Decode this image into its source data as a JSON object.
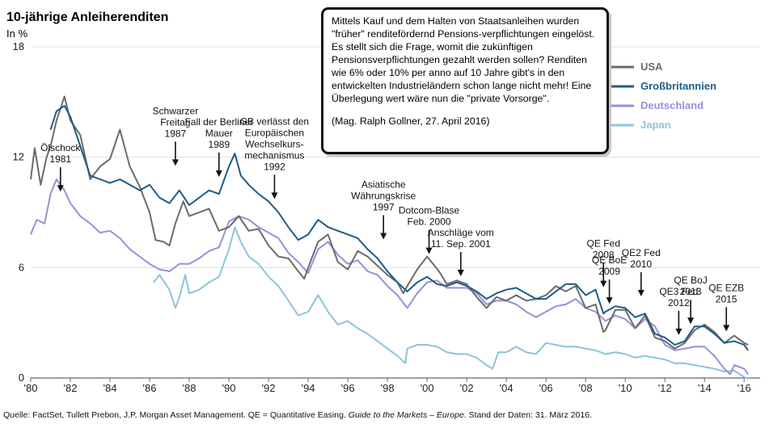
{
  "chart_data": {
    "type": "line",
    "title": "10-jährige Anleiherenditen",
    "ylabel": "In %",
    "ylim": [
      0,
      18
    ],
    "xlim": [
      1980,
      2016.4
    ],
    "y_ticks": [
      "0",
      "6",
      "12",
      "18"
    ],
    "x_ticks": [
      "'80",
      "'82",
      "'84",
      "'86",
      "'88",
      "'90",
      "'92",
      "'94",
      "'96",
      "'98",
      "'00",
      "'02",
      "'04",
      "'06",
      "'08",
      "'10",
      "'12",
      "'14",
      "'16"
    ],
    "x_tick_years": [
      1980,
      1982,
      1984,
      1986,
      1988,
      1990,
      1992,
      1994,
      1996,
      1998,
      2000,
      2002,
      2004,
      2006,
      2008,
      2010,
      2012,
      2014,
      2016
    ],
    "grid": "horizontal",
    "legend_position": "top-right",
    "series": [
      {
        "name": "USA",
        "color": "#6b6b6b",
        "x": [
          1980,
          1980.2,
          1980.5,
          1980.8,
          1981,
          1981.3,
          1981.7,
          1982,
          1982.5,
          1983,
          1983.5,
          1984,
          1984.5,
          1985,
          1985.5,
          1986,
          1986.3,
          1986.7,
          1987,
          1987.3,
          1987.7,
          1988,
          1988.5,
          1989,
          1989.5,
          1990,
          1990.5,
          1991,
          1991.5,
          1992,
          1992.5,
          1993,
          1993.5,
          1993.8,
          1994,
          1994.5,
          1995,
          1995.5,
          1996,
          1996.5,
          1997,
          1997.5,
          1998,
          1998.5,
          1998.8,
          1999,
          1999.5,
          2000,
          2000.3,
          2000.6,
          2001,
          2001.5,
          2002,
          2002.5,
          2003,
          2003.5,
          2004,
          2004.5,
          2005,
          2005.5,
          2006,
          2006.5,
          2007,
          2007.5,
          2008,
          2008.5,
          2008.9,
          2009,
          2009.5,
          2010,
          2010.5,
          2011,
          2011.5,
          2012,
          2012.5,
          2013,
          2013.5,
          2014,
          2014.5,
          2015,
          2015.5,
          2016,
          2016.2
        ],
        "y": [
          10.8,
          12.5,
          10.5,
          12.0,
          12.6,
          14.0,
          15.3,
          14.0,
          13.2,
          10.8,
          11.5,
          11.9,
          13.5,
          11.5,
          10.4,
          9.0,
          7.5,
          7.4,
          7.2,
          8.4,
          9.6,
          8.8,
          9.0,
          9.2,
          8.0,
          8.2,
          8.8,
          8.0,
          8.1,
          7.2,
          6.6,
          6.5,
          5.8,
          5.4,
          6.0,
          7.4,
          7.8,
          6.3,
          5.9,
          6.9,
          6.6,
          6.1,
          5.6,
          5.2,
          4.6,
          5.0,
          5.9,
          6.6,
          6.2,
          5.8,
          5.1,
          5.3,
          5.1,
          4.4,
          3.8,
          4.4,
          4.2,
          4.5,
          4.2,
          4.3,
          4.5,
          5.0,
          4.7,
          5.0,
          3.8,
          4.0,
          2.5,
          2.6,
          3.7,
          3.7,
          2.7,
          3.4,
          2.2,
          2.0,
          1.6,
          1.9,
          2.6,
          2.9,
          2.5,
          1.9,
          2.3,
          1.9,
          1.8
        ]
      },
      {
        "name": "Großbritannien",
        "color": "#1e5c86",
        "x": [
          1981,
          1981.3,
          1981.7,
          1982,
          1982.5,
          1983,
          1983.5,
          1984,
          1984.5,
          1985,
          1985.5,
          1986,
          1986.5,
          1987,
          1987.5,
          1988,
          1988.5,
          1989,
          1989.5,
          1990,
          1990.3,
          1990.6,
          1991,
          1991.5,
          1992,
          1992.5,
          1993,
          1993.5,
          1994,
          1994.5,
          1995,
          1995.5,
          1996,
          1996.5,
          1997,
          1997.5,
          1998,
          1998.5,
          1999,
          1999.5,
          2000,
          2000.5,
          2001,
          2001.5,
          2002,
          2002.5,
          2003,
          2003.5,
          2004,
          2004.5,
          2005,
          2005.5,
          2006,
          2006.5,
          2007,
          2007.5,
          2008,
          2008.5,
          2008.9,
          2009,
          2009.5,
          2010,
          2010.5,
          2011,
          2011.5,
          2012,
          2012.5,
          2013,
          2013.5,
          2014,
          2014.5,
          2015,
          2015.5,
          2016,
          2016.2
        ],
        "y": [
          13.5,
          14.5,
          14.8,
          14.2,
          12.6,
          11.0,
          10.8,
          10.6,
          10.8,
          10.5,
          10.2,
          10.5,
          9.8,
          9.5,
          10.2,
          9.4,
          9.8,
          10.2,
          10.0,
          11.5,
          12.2,
          11.0,
          10.5,
          10.0,
          9.6,
          9.0,
          8.2,
          7.5,
          7.8,
          8.6,
          8.2,
          8.0,
          7.8,
          7.6,
          7.0,
          6.5,
          5.8,
          5.2,
          4.7,
          5.2,
          5.5,
          5.1,
          5.0,
          5.2,
          5.0,
          4.7,
          4.3,
          4.6,
          4.8,
          4.9,
          4.6,
          4.3,
          4.3,
          4.7,
          5.1,
          5.1,
          4.5,
          4.8,
          3.5,
          3.6,
          3.9,
          3.8,
          3.3,
          3.5,
          2.4,
          2.2,
          1.8,
          2.0,
          2.8,
          2.8,
          2.4,
          1.9,
          2.0,
          1.8,
          1.5
        ]
      },
      {
        "name": "Deutschland",
        "color": "#9a8fd8",
        "x": [
          1980,
          1980.3,
          1980.7,
          1981,
          1981.3,
          1981.7,
          1982,
          1982.5,
          1983,
          1983.5,
          1984,
          1984.5,
          1985,
          1985.5,
          1986,
          1986.5,
          1987,
          1987.5,
          1988,
          1988.5,
          1989,
          1989.5,
          1990,
          1990.5,
          1991,
          1991.5,
          1992,
          1992.5,
          1993,
          1993.5,
          1994,
          1994.5,
          1995,
          1995.5,
          1996,
          1996.5,
          1997,
          1997.5,
          1998,
          1998.5,
          1999,
          1999.5,
          2000,
          2000.5,
          2001,
          2001.5,
          2002,
          2002.5,
          2003,
          2003.5,
          2004,
          2004.5,
          2005,
          2005.5,
          2006,
          2006.5,
          2007,
          2007.5,
          2008,
          2008.5,
          2009,
          2009.5,
          2010,
          2010.5,
          2011,
          2011.5,
          2012,
          2012.5,
          2013,
          2013.5,
          2014,
          2014.5,
          2015,
          2015.3,
          2015.5,
          2016,
          2016.2
        ],
        "y": [
          7.8,
          8.6,
          8.4,
          10.0,
          10.8,
          10.2,
          9.5,
          8.8,
          8.4,
          7.9,
          8.0,
          7.6,
          7.0,
          6.6,
          6.2,
          5.9,
          5.8,
          6.2,
          6.2,
          6.5,
          6.9,
          7.1,
          8.5,
          8.8,
          8.6,
          8.2,
          7.9,
          7.6,
          6.8,
          6.3,
          5.7,
          7.0,
          7.4,
          6.7,
          6.2,
          6.4,
          5.8,
          5.6,
          5.0,
          4.5,
          3.8,
          4.6,
          5.2,
          5.3,
          4.9,
          4.9,
          4.9,
          4.6,
          4.0,
          4.2,
          4.2,
          4.0,
          3.6,
          3.3,
          3.6,
          3.9,
          4.0,
          4.3,
          3.8,
          3.6,
          3.1,
          3.4,
          3.2,
          2.7,
          3.2,
          2.8,
          1.8,
          1.5,
          1.6,
          1.7,
          1.7,
          1.2,
          0.5,
          0.2,
          0.7,
          0.5,
          0.2
        ]
      },
      {
        "name": "Japan",
        "color": "#8cc4dc",
        "x": [
          1986.2,
          1986.5,
          1987,
          1987.3,
          1987.5,
          1987.8,
          1988,
          1988.5,
          1989,
          1989.5,
          1990,
          1990.3,
          1990.6,
          1991,
          1991.5,
          1992,
          1992.5,
          1993,
          1993.5,
          1994,
          1994.5,
          1995,
          1995.5,
          1996,
          1996.5,
          1997,
          1997.5,
          1998,
          1998.5,
          1998.9,
          1999,
          1999.5,
          2000,
          2000.5,
          2001,
          2001.5,
          2002,
          2002.5,
          2003,
          2003.3,
          2003.6,
          2004,
          2004.5,
          2005,
          2005.5,
          2006,
          2006.5,
          2007,
          2007.5,
          2008,
          2008.5,
          2009,
          2009.5,
          2010,
          2010.5,
          2011,
          2011.5,
          2012,
          2012.5,
          2013,
          2013.5,
          2014,
          2014.5,
          2015,
          2015.5,
          2016,
          2016.2
        ],
        "y": [
          5.2,
          5.6,
          4.8,
          3.8,
          4.4,
          5.6,
          4.6,
          4.8,
          5.2,
          5.5,
          7.0,
          8.2,
          7.4,
          6.6,
          6.2,
          5.5,
          5.0,
          4.2,
          3.4,
          3.6,
          4.5,
          3.6,
          2.9,
          3.1,
          2.7,
          2.4,
          2.0,
          1.6,
          1.2,
          0.8,
          1.6,
          1.8,
          1.8,
          1.7,
          1.4,
          1.3,
          1.3,
          1.1,
          0.7,
          0.5,
          1.4,
          1.4,
          1.7,
          1.4,
          1.3,
          1.9,
          1.8,
          1.7,
          1.7,
          1.6,
          1.5,
          1.3,
          1.4,
          1.3,
          1.1,
          1.2,
          1.1,
          1.0,
          0.8,
          0.8,
          0.7,
          0.6,
          0.5,
          0.35,
          0.4,
          0.05,
          -0.05
        ]
      }
    ],
    "annotations": [
      {
        "lines": [
          "Ölschock",
          "1981"
        ],
        "x": 1981.5,
        "y": 10.0
      },
      {
        "lines": [
          "Schwarzer",
          "Freitag",
          "1987"
        ],
        "x": 1987.3,
        "y": 11.4
      },
      {
        "lines": [
          "Fall der Berliner",
          "Mauer",
          "1989"
        ],
        "x": 1989.5,
        "y": 10.8
      },
      {
        "lines": [
          "GB verlässt den",
          "Europäischen",
          "Wechselkurs-",
          "mechanismus",
          "1992"
        ],
        "x": 1992.3,
        "y": 9.6
      },
      {
        "lines": [
          "Asiatische",
          "Währungskrise",
          "1997"
        ],
        "x": 1997.8,
        "y": 7.4
      },
      {
        "lines": [
          "Dotcom-Blase",
          "Feb. 2000"
        ],
        "x": 2000.1,
        "y": 6.6
      },
      {
        "lines": [
          "Anschläge vom",
          "11. Sep. 2001"
        ],
        "x": 2001.7,
        "y": 5.4
      },
      {
        "lines": [
          "QE Fed",
          "2008"
        ],
        "x": 2008.9,
        "y": 4.8
      },
      {
        "lines": [
          "QE BoE",
          "2009"
        ],
        "x": 2009.2,
        "y": 3.9
      },
      {
        "lines": [
          "QE2 Fed",
          "2010"
        ],
        "x": 2010.8,
        "y": 4.3
      },
      {
        "lines": [
          "QE3 Fed",
          "2012"
        ],
        "x": 2012.7,
        "y": 2.2
      },
      {
        "lines": [
          "QE BoJ",
          "2013"
        ],
        "x": 2013.3,
        "y": 2.8
      },
      {
        "lines": [
          "QE EZB",
          "2015"
        ],
        "x": 2015.1,
        "y": 2.4
      }
    ]
  },
  "note": {
    "text": "Mittels Kauf und dem Halten von Staatsanleihen wurden \"früher\" renditefördernd Pensions-verpflichtungen eingelöst. Es stellt sich die Frage, womit die zukünftigen Pensionsverpflichtungen gezahlt werden sollen? Renditen wie 6% oder 10% per anno auf 10 Jahre gibt's in den entwickelten Industrieländern schon lange nicht mehr! Eine Überlegung wert wäre nun die \"private Vorsorge\".",
    "citation": "(Mag. Ralph Gollner, 27. April 2016)"
  },
  "source": {
    "prefix": "Quelle: FactSet, Tullett Prebon, J.P. Morgan Asset Management. QE = Quantitative Easing. ",
    "italic": "Guide to the Markets – Europe",
    "suffix": ". Stand der Daten: 31. März 2016."
  }
}
